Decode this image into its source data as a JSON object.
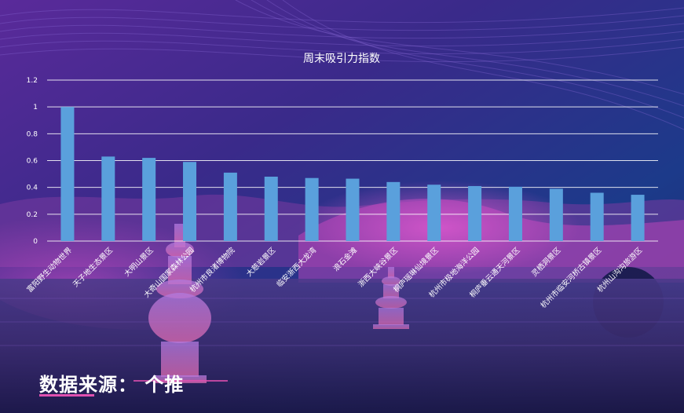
{
  "source_line": "数据来源： 个推",
  "colors": {
    "bar": "#5aa0dc",
    "grid": "#ffffff",
    "text": "#ffffff"
  },
  "chart_data": {
    "type": "bar",
    "title": "周末吸引力指数",
    "ylim": [
      0,
      1.2
    ],
    "yticks": [
      "0",
      "0.2",
      "0.4",
      "0.6",
      "0.8",
      "1",
      "1.2"
    ],
    "grid": true,
    "categories": [
      "富阳野生动物世界",
      "天子地生态景区",
      "大明山景区",
      "大奇山国家森林公园",
      "杭州市良渚博物院",
      "大慈岩景区",
      "临安浙西大龙湾",
      "浪石金滩",
      "浙西大峡谷景区",
      "桐庐瑶琳仙境景区",
      "杭州市极地海洋公园",
      "桐庐垂云通天河景区",
      "灵栖洞景区",
      "杭州市临安河桥古镇景区",
      "杭州山沟沟旅游区"
    ],
    "values": [
      1.0,
      0.63,
      0.62,
      0.59,
      0.51,
      0.48,
      0.47,
      0.465,
      0.44,
      0.42,
      0.41,
      0.405,
      0.39,
      0.36,
      0.345
    ]
  }
}
